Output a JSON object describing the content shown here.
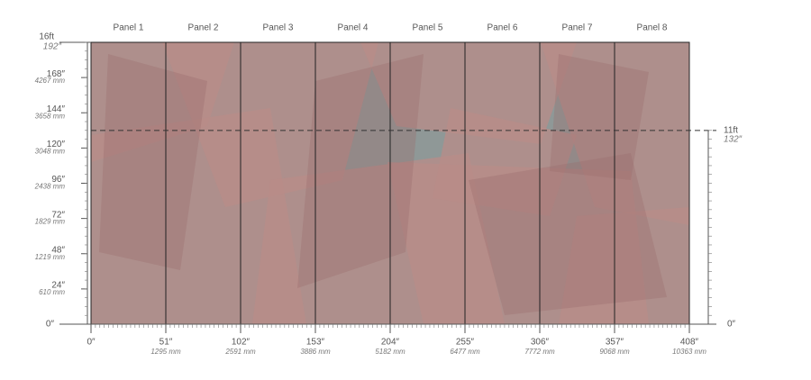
{
  "panels": [
    "Panel 1",
    "Panel 2",
    "Panel 3",
    "Panel 4",
    "Panel 5",
    "Panel 6",
    "Panel 7",
    "Panel 8"
  ],
  "left_ruler": {
    "top_ft": "16ft",
    "top_in": "192″",
    "marks": [
      {
        "in": "168″",
        "mm": "4267 mm"
      },
      {
        "in": "144″",
        "mm": "3658 mm"
      },
      {
        "in": "120″",
        "mm": "3048 mm"
      },
      {
        "in": "96″",
        "mm": "2438 mm"
      },
      {
        "in": "72″",
        "mm": "1829 mm"
      },
      {
        "in": "48″",
        "mm": "1219 mm"
      },
      {
        "in": "24″",
        "mm": "610 mm"
      }
    ],
    "zero": "0″"
  },
  "right_ruler": {
    "ft": "11ft",
    "in": "132″",
    "zero": "0″"
  },
  "bottom_ruler": {
    "zero": "0″",
    "marks": [
      {
        "in": "51″",
        "mm": "1295 mm"
      },
      {
        "in": "102″",
        "mm": "2591 mm"
      },
      {
        "in": "153″",
        "mm": "3886 mm"
      },
      {
        "in": "204″",
        "mm": "5182 mm"
      },
      {
        "in": "255″",
        "mm": "6477 mm"
      },
      {
        "in": "306″",
        "mm": "7772 mm"
      },
      {
        "in": "357″",
        "mm": "9068 mm"
      },
      {
        "in": "408″",
        "mm": "10363 mm"
      }
    ]
  }
}
